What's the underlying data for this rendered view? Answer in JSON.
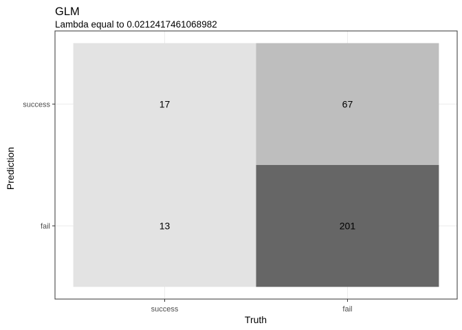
{
  "chart_data": {
    "type": "heatmap",
    "title": "GLM",
    "subtitle": "Lambda equal to 0.0212417461068982",
    "xlabel": "Truth",
    "ylabel": "Prediction",
    "x_categories": [
      "success",
      "fail"
    ],
    "y_categories": [
      "success",
      "fail"
    ],
    "cells": [
      {
        "truth": "success",
        "prediction": "success",
        "value": 17,
        "color": "#e3e3e3"
      },
      {
        "truth": "fail",
        "prediction": "success",
        "value": 67,
        "color": "#bebebe"
      },
      {
        "truth": "success",
        "prediction": "fail",
        "value": 13,
        "color": "#e3e3e3"
      },
      {
        "truth": "fail",
        "prediction": "fail",
        "value": 201,
        "color": "#666666"
      }
    ],
    "grid": true,
    "panel_border": true
  }
}
